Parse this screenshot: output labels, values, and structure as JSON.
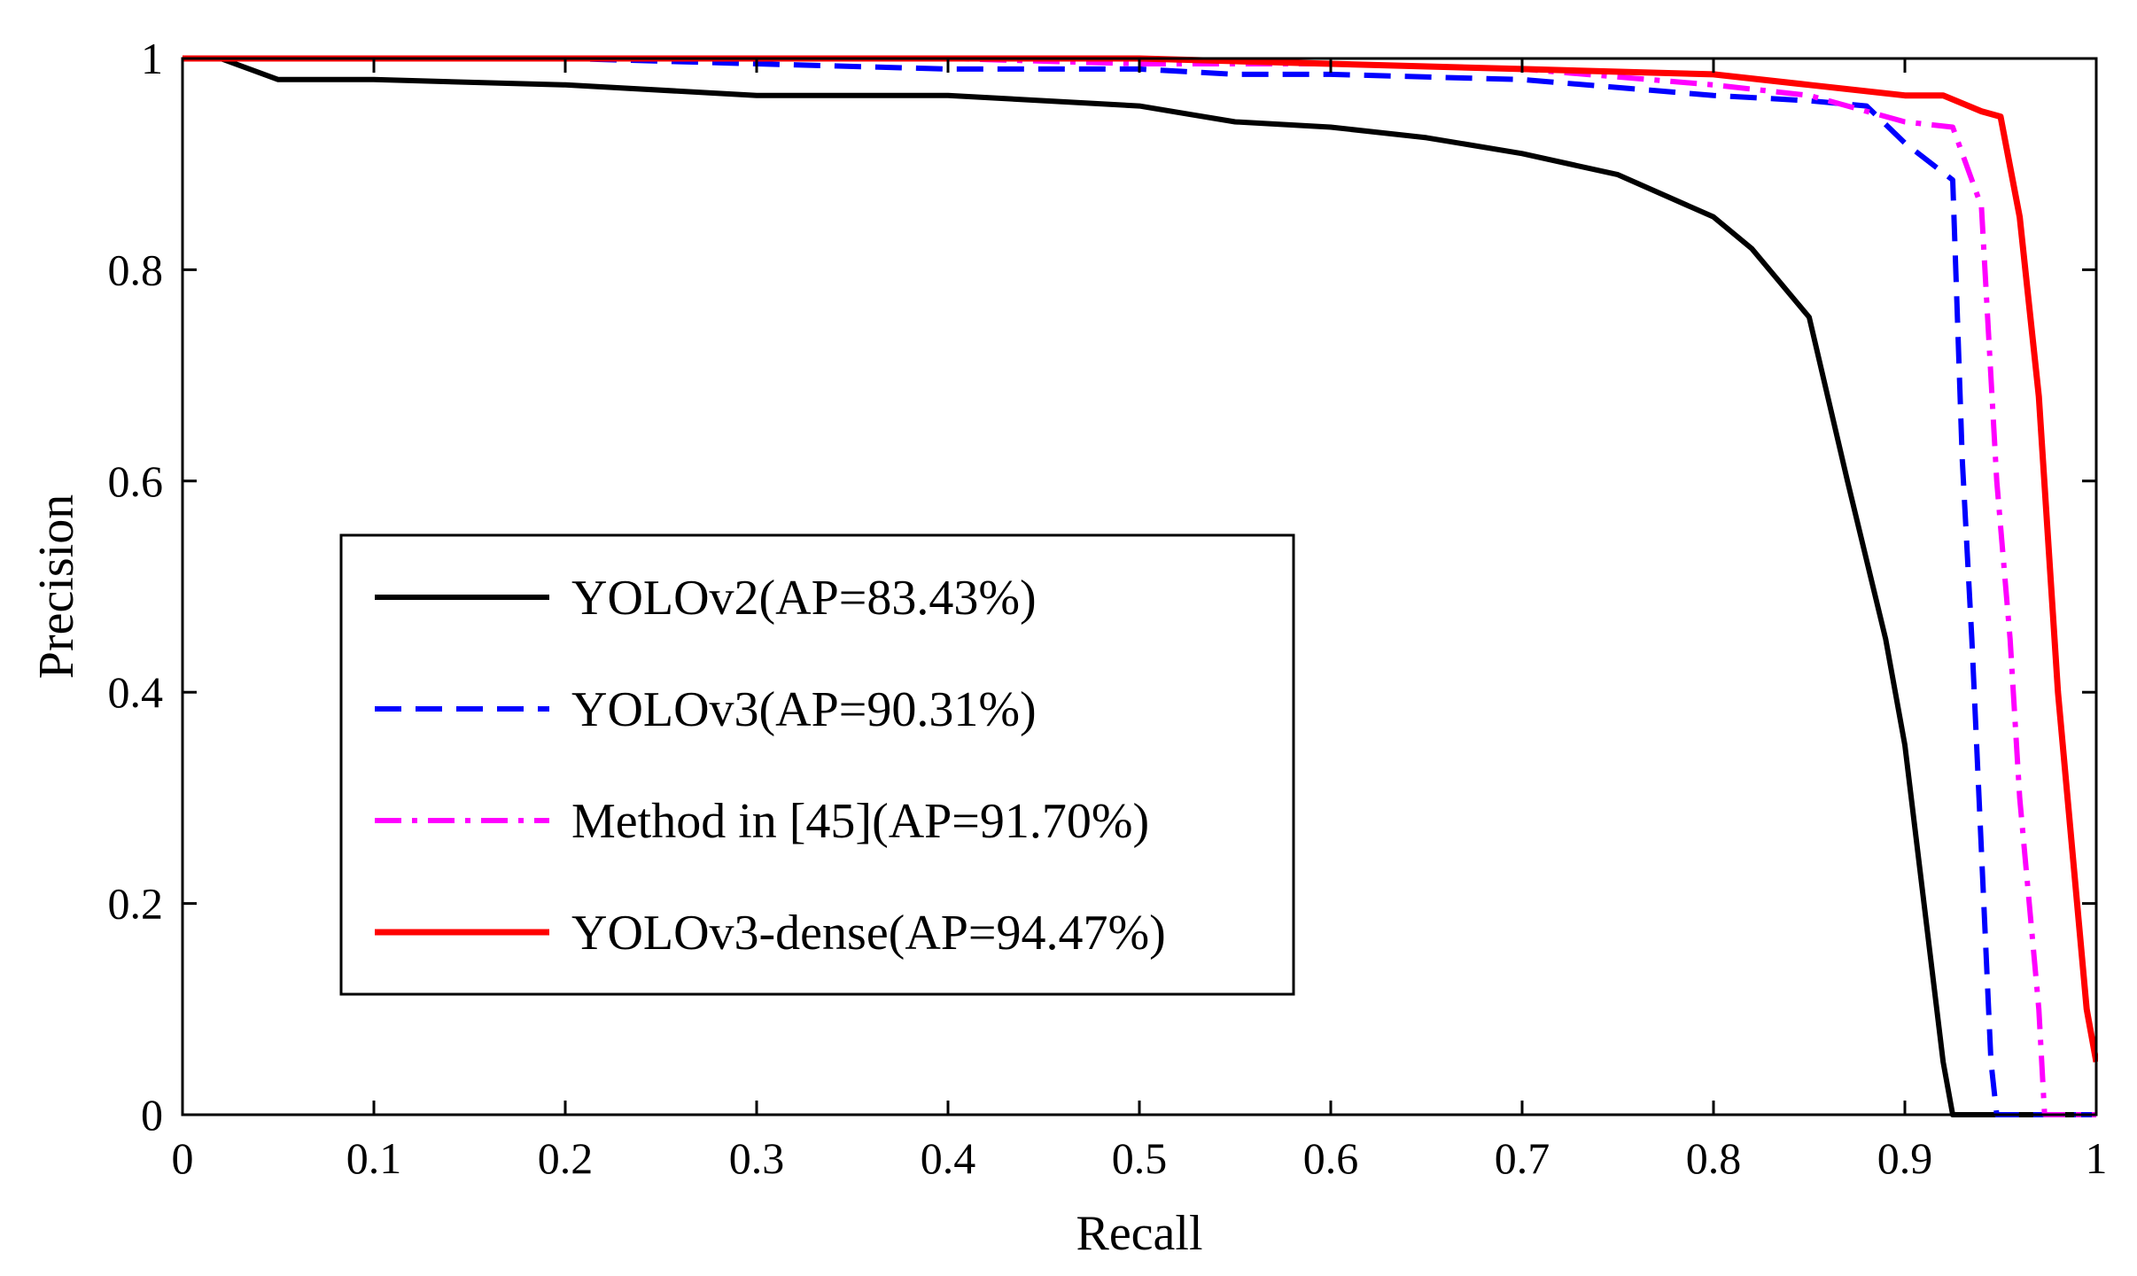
{
  "chart_data": {
    "type": "line",
    "title": "",
    "xlabel": "Recall",
    "ylabel": "Precision",
    "xlim": [
      0,
      1
    ],
    "ylim": [
      0,
      1
    ],
    "grid": false,
    "legend_position": "center-left",
    "xticks": [
      0,
      0.1,
      0.2,
      0.3,
      0.4,
      0.5,
      0.6,
      0.7,
      0.8,
      0.9,
      1
    ],
    "xtick_labels": [
      "0",
      "0.1",
      "0.2",
      "0.3",
      "0.4",
      "0.5",
      "0.6",
      "0.7",
      "0.8",
      "0.9",
      "1"
    ],
    "yticks": [
      0,
      0.2,
      0.4,
      0.6,
      0.8,
      1
    ],
    "ytick_labels": [
      "0",
      "0.2",
      "0.4",
      "0.6",
      "0.8",
      "1"
    ],
    "series": [
      {
        "name": "YOLOv2(AP=83.43%)",
        "color": "#000000",
        "style": "solid",
        "x": [
          0,
          0.02,
          0.05,
          0.1,
          0.2,
          0.3,
          0.4,
          0.5,
          0.55,
          0.6,
          0.65,
          0.7,
          0.75,
          0.8,
          0.82,
          0.85,
          0.87,
          0.89,
          0.9,
          0.91,
          0.92,
          0.925,
          1
        ],
        "y": [
          1,
          1,
          0.98,
          0.98,
          0.975,
          0.965,
          0.965,
          0.955,
          0.94,
          0.935,
          0.925,
          0.91,
          0.89,
          0.85,
          0.82,
          0.755,
          0.6,
          0.45,
          0.35,
          0.2,
          0.05,
          0,
          0
        ]
      },
      {
        "name": "YOLOv3(AP=90.31%)",
        "color": "#0000FF",
        "style": "dashed",
        "x": [
          0,
          0.1,
          0.2,
          0.3,
          0.4,
          0.5,
          0.55,
          0.6,
          0.7,
          0.8,
          0.85,
          0.88,
          0.9,
          0.925,
          0.93,
          0.935,
          0.94,
          0.945,
          0.948,
          1
        ],
        "y": [
          1,
          1,
          1,
          0.995,
          0.99,
          0.99,
          0.985,
          0.985,
          0.98,
          0.965,
          0.96,
          0.955,
          0.92,
          0.885,
          0.62,
          0.45,
          0.25,
          0.05,
          0,
          0
        ]
      },
      {
        "name": "Method in [45](AP=91.70%)",
        "color": "#FF00FF",
        "style": "dashdot",
        "x": [
          0,
          0.1,
          0.2,
          0.3,
          0.4,
          0.5,
          0.6,
          0.7,
          0.8,
          0.85,
          0.9,
          0.925,
          0.94,
          0.948,
          0.955,
          0.96,
          0.965,
          0.97,
          0.973,
          1
        ],
        "y": [
          1,
          1,
          1,
          1,
          1,
          0.995,
          0.995,
          0.99,
          0.975,
          0.965,
          0.94,
          0.935,
          0.86,
          0.6,
          0.45,
          0.3,
          0.2,
          0.1,
          0,
          0
        ]
      },
      {
        "name": "YOLOv3-dense(AP=94.47%)",
        "color": "#FF0000",
        "style": "solid",
        "x": [
          0,
          0.1,
          0.2,
          0.3,
          0.4,
          0.5,
          0.6,
          0.7,
          0.8,
          0.85,
          0.9,
          0.92,
          0.94,
          0.95,
          0.96,
          0.97,
          0.98,
          0.99,
          0.995,
          1
        ],
        "y": [
          1,
          1,
          1,
          1,
          1,
          1,
          0.995,
          0.99,
          0.985,
          0.975,
          0.965,
          0.965,
          0.95,
          0.945,
          0.85,
          0.68,
          0.4,
          0.2,
          0.1,
          0.05
        ]
      }
    ]
  }
}
